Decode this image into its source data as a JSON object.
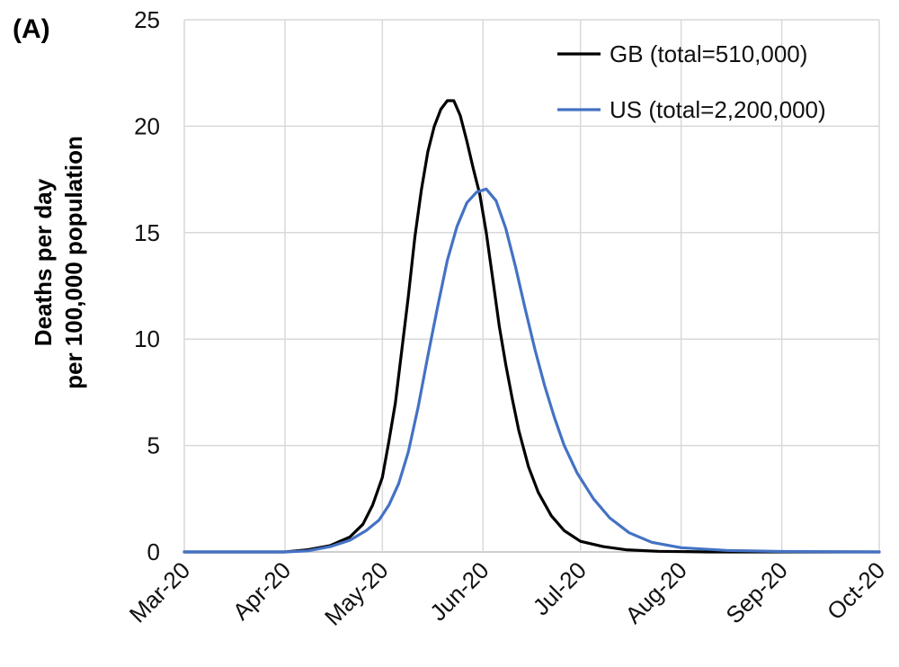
{
  "panel_label": "(A)",
  "chart_data": {
    "type": "line",
    "ylabel": [
      "Deaths per day",
      "per 100,000 population"
    ],
    "xlabel": "",
    "x_tick_labels": [
      "Mar-20",
      "Apr-20",
      "May-20",
      "Jun-20",
      "Jul-20",
      "Aug-20",
      "Sep-20",
      "Oct-20"
    ],
    "x_ticks": [
      "2020-03-01",
      "2020-04-01",
      "2020-05-01",
      "2020-06-01",
      "2020-07-01",
      "2020-08-01",
      "2020-09-01",
      "2020-10-01"
    ],
    "xlim": [
      "2020-03-01",
      "2020-10-01"
    ],
    "ylim": [
      0,
      25
    ],
    "y_ticks": [
      0,
      5,
      10,
      15,
      20,
      25
    ],
    "grid": true,
    "legend_position": "top-right",
    "series": [
      {
        "name": "GB (total=510,000)",
        "color": "#000000",
        "points": [
          [
            "2020-03-01",
            0
          ],
          [
            "2020-04-01",
            0
          ],
          [
            "2020-04-08",
            0.1
          ],
          [
            "2020-04-15",
            0.3
          ],
          [
            "2020-04-21",
            0.7
          ],
          [
            "2020-04-25",
            1.3
          ],
          [
            "2020-04-28",
            2.2
          ],
          [
            "2020-05-01",
            3.5
          ],
          [
            "2020-05-03",
            5.2
          ],
          [
            "2020-05-05",
            7.0
          ],
          [
            "2020-05-07",
            9.5
          ],
          [
            "2020-05-09",
            12.0
          ],
          [
            "2020-05-11",
            14.8
          ],
          [
            "2020-05-13",
            17.0
          ],
          [
            "2020-05-15",
            18.8
          ],
          [
            "2020-05-17",
            20.0
          ],
          [
            "2020-05-19",
            20.8
          ],
          [
            "2020-05-21",
            21.2
          ],
          [
            "2020-05-23",
            21.2
          ],
          [
            "2020-05-25",
            20.5
          ],
          [
            "2020-05-27",
            19.3
          ],
          [
            "2020-05-29",
            18.0
          ],
          [
            "2020-05-31",
            16.8
          ],
          [
            "2020-06-02",
            15.0
          ],
          [
            "2020-06-04",
            12.8
          ],
          [
            "2020-06-06",
            10.6
          ],
          [
            "2020-06-08",
            8.8
          ],
          [
            "2020-06-10",
            7.2
          ],
          [
            "2020-06-12",
            5.7
          ],
          [
            "2020-06-15",
            4.0
          ],
          [
            "2020-06-18",
            2.8
          ],
          [
            "2020-06-22",
            1.7
          ],
          [
            "2020-06-26",
            1.0
          ],
          [
            "2020-07-01",
            0.5
          ],
          [
            "2020-07-08",
            0.25
          ],
          [
            "2020-07-15",
            0.1
          ],
          [
            "2020-07-25",
            0.03
          ],
          [
            "2020-08-10",
            0
          ],
          [
            "2020-10-01",
            0
          ]
        ]
      },
      {
        "name": "US (total=2,200,000)",
        "color": "#4472c4",
        "points": [
          [
            "2020-03-01",
            0
          ],
          [
            "2020-04-01",
            0
          ],
          [
            "2020-04-08",
            0.05
          ],
          [
            "2020-04-15",
            0.25
          ],
          [
            "2020-04-21",
            0.55
          ],
          [
            "2020-04-26",
            1.0
          ],
          [
            "2020-04-30",
            1.5
          ],
          [
            "2020-05-03",
            2.2
          ],
          [
            "2020-05-06",
            3.2
          ],
          [
            "2020-05-09",
            4.7
          ],
          [
            "2020-05-12",
            6.8
          ],
          [
            "2020-05-15",
            9.2
          ],
          [
            "2020-05-18",
            11.5
          ],
          [
            "2020-05-21",
            13.7
          ],
          [
            "2020-05-24",
            15.3
          ],
          [
            "2020-05-27",
            16.4
          ],
          [
            "2020-05-30",
            16.9
          ],
          [
            "2020-06-02",
            17.05
          ],
          [
            "2020-06-05",
            16.5
          ],
          [
            "2020-06-08",
            15.2
          ],
          [
            "2020-06-11",
            13.4
          ],
          [
            "2020-06-14",
            11.4
          ],
          [
            "2020-06-17",
            9.5
          ],
          [
            "2020-06-20",
            7.8
          ],
          [
            "2020-06-23",
            6.3
          ],
          [
            "2020-06-26",
            5.0
          ],
          [
            "2020-06-30",
            3.7
          ],
          [
            "2020-07-05",
            2.5
          ],
          [
            "2020-07-10",
            1.6
          ],
          [
            "2020-07-16",
            0.9
          ],
          [
            "2020-07-23",
            0.45
          ],
          [
            "2020-08-01",
            0.2
          ],
          [
            "2020-08-15",
            0.07
          ],
          [
            "2020-09-01",
            0.02
          ],
          [
            "2020-10-01",
            0
          ]
        ]
      }
    ]
  }
}
